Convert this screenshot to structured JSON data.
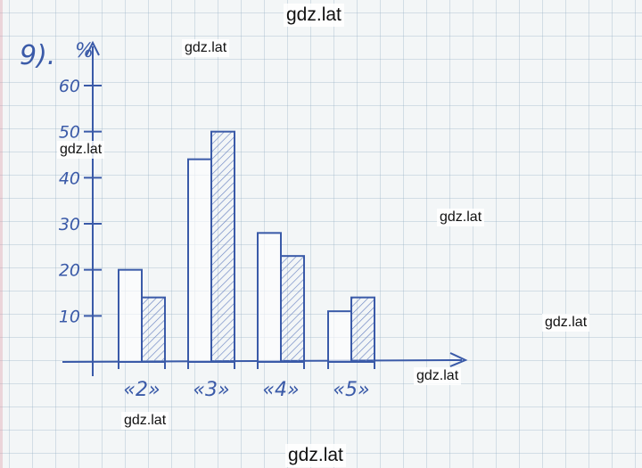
{
  "problem_number": "9).",
  "watermarks": [
    "gdz.lat",
    "gdz.lat",
    "gdz.lat",
    "gdz.lat",
    "gdz.lat",
    "gdz.lat",
    "gdz.lat",
    "gdz.lat"
  ],
  "colors": {
    "ink": "#3a5aa8",
    "hatch": "#6b84c2",
    "paper": "#f3f6f7"
  },
  "chart_data": {
    "type": "bar",
    "title": "",
    "ylabel": "%",
    "xlabel": "",
    "categories": [
      "«2»",
      "«3»",
      "«4»",
      "«5»"
    ],
    "series": [
      {
        "values": [
          20,
          44,
          28,
          11
        ],
        "style": "outline"
      },
      {
        "values": [
          14,
          50,
          23,
          14
        ],
        "style": "hatched"
      }
    ],
    "yticks": [
      "10",
      "20",
      "30",
      "40",
      "50",
      "60"
    ],
    "ylim": [
      0,
      60
    ],
    "grid": false,
    "legend": "none"
  }
}
